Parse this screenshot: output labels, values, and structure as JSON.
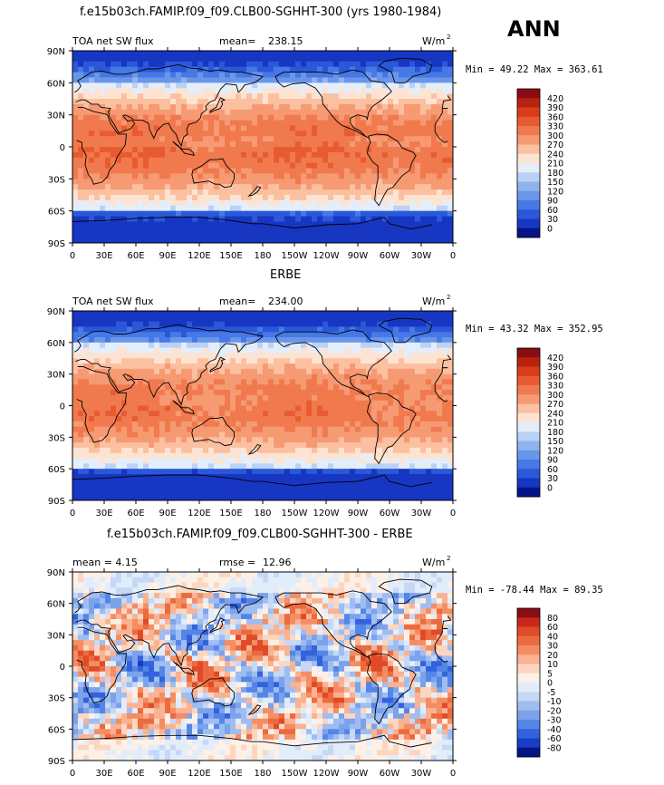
{
  "page": {
    "season_label": "ANN",
    "units_base": "W/m",
    "units_exp": "2"
  },
  "chart_data": [
    {
      "type": "heatmap",
      "title": "f.e15b03ch.FAMIP.f09_f09.CLB00-SGHHT-300 (yrs 1980-1984)",
      "left_label": "TOA net SW flux",
      "stat_label": "mean=",
      "stat_value": "238.15",
      "min_max": "Min =  49.22 Max = 363.61",
      "min": 49.22,
      "max": 363.61,
      "mean": 238.15,
      "colorbar_levels": [
        "420",
        "390",
        "360",
        "330",
        "300",
        "270",
        "240",
        "210",
        "180",
        "150",
        "120",
        "90",
        "60",
        "30",
        "0"
      ],
      "colorbar_colors": [
        "#8a0c14",
        "#b8220f",
        "#d83c1c",
        "#e85b30",
        "#f07a4e",
        "#f69a73",
        "#fbc0a0",
        "#fde3d2",
        "#e4eefb",
        "#b9d2f5",
        "#8fb3ee",
        "#6a96ea",
        "#4678e6",
        "#2a58d9",
        "#1736c2",
        "#041486"
      ]
    },
    {
      "type": "heatmap",
      "title": "ERBE",
      "left_label": "TOA net SW flux",
      "stat_label": "mean=",
      "stat_value": "234.00",
      "min_max": "Min =  43.32 Max = 352.95",
      "min": 43.32,
      "max": 352.95,
      "mean": 234.0,
      "colorbar_levels": [
        "420",
        "390",
        "360",
        "330",
        "300",
        "270",
        "240",
        "210",
        "180",
        "150",
        "120",
        "90",
        "60",
        "30",
        "0"
      ],
      "colorbar_colors": [
        "#8a0c14",
        "#b8220f",
        "#d83c1c",
        "#e85b30",
        "#f07a4e",
        "#f69a73",
        "#fbc0a0",
        "#fde3d2",
        "#e4eefb",
        "#b9d2f5",
        "#8fb3ee",
        "#6a96ea",
        "#4678e6",
        "#2a58d9",
        "#1736c2",
        "#041486"
      ]
    },
    {
      "type": "heatmap",
      "title": "f.e15b03ch.FAMIP.f09_f09.CLB00-SGHHT-300 - ERBE",
      "left_label": "mean =    4.15",
      "stat_label": "rmse =",
      "stat_value": "12.96",
      "min_max": "Min = -78.44 Max =  89.35",
      "min": -78.44,
      "max": 89.35,
      "mean": 4.15,
      "rmse": 12.96,
      "colorbar_levels": [
        "80",
        "60",
        "40",
        "30",
        "20",
        "10",
        "5",
        "0",
        "-5",
        "-10",
        "-20",
        "-30",
        "-40",
        "-60",
        "-80"
      ],
      "colorbar_colors": [
        "#8a0c14",
        "#c8281a",
        "#e04a27",
        "#ec6a3f",
        "#f48d63",
        "#f9b292",
        "#fcd6c0",
        "#fdf0e6",
        "#e2edfb",
        "#c5d8f6",
        "#9fbdf0",
        "#7ba2eb",
        "#5585e6",
        "#3362dd",
        "#1a3dc6",
        "#041486"
      ]
    }
  ],
  "axes": {
    "lat_ticks": [
      "90N",
      "60N",
      "30N",
      "0",
      "30S",
      "60S",
      "90S"
    ],
    "lon_ticks": [
      "0",
      "30E",
      "60E",
      "90E",
      "120E",
      "150E",
      "180",
      "150W",
      "120W",
      "90W",
      "60W",
      "30W",
      "0"
    ]
  }
}
